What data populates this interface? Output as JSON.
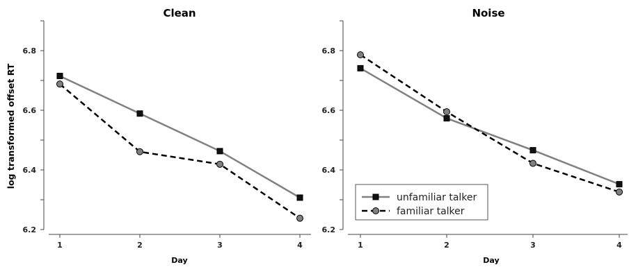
{
  "chart_data": [
    {
      "type": "line",
      "title": "Clean",
      "xlabel": "Day",
      "ylabel": "log transformed offset RT",
      "x": [
        1,
        2,
        3,
        4
      ],
      "ylim": [
        6.2,
        6.9
      ],
      "yticks": [
        "6.2",
        "6.4",
        "6.6",
        "6.8"
      ],
      "xticks": [
        "1",
        "2",
        "3",
        "4"
      ],
      "series": [
        {
          "name": "unfamiliar talker",
          "values": [
            6.715,
            6.589,
            6.463,
            6.307
          ],
          "color": "#808080",
          "marker": "square",
          "line": "solid"
        },
        {
          "name": "familiar talker",
          "values": [
            6.688,
            6.461,
            6.419,
            6.238
          ],
          "color": "#000000",
          "marker": "circle",
          "line": "dashed"
        }
      ]
    },
    {
      "type": "line",
      "title": "Noise",
      "xlabel": "Day",
      "ylabel": "",
      "x": [
        1,
        2,
        3,
        4
      ],
      "ylim": [
        6.2,
        6.9
      ],
      "yticks": [
        "6.2",
        "6.4",
        "6.6",
        "6.8"
      ],
      "xticks": [
        "1",
        "2",
        "3",
        "4"
      ],
      "legend": {
        "position": "bottom-left"
      },
      "series": [
        {
          "name": "unfamiliar talker",
          "values": [
            6.741,
            6.573,
            6.466,
            6.352
          ],
          "color": "#808080",
          "marker": "square",
          "line": "solid"
        },
        {
          "name": "familiar talker",
          "values": [
            6.786,
            6.595,
            6.422,
            6.326
          ],
          "color": "#000000",
          "marker": "circle",
          "line": "dashed"
        }
      ]
    }
  ]
}
